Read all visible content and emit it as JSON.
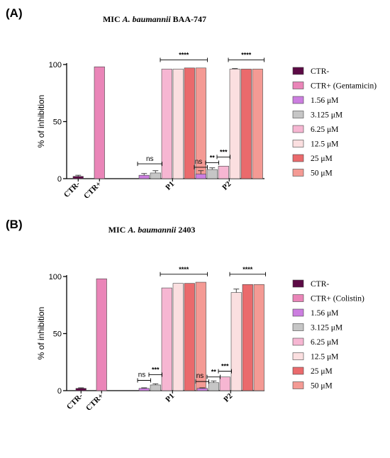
{
  "chart_data": [
    {
      "type": "bar",
      "panel_label": "(A)",
      "title_prefix": "MIC",
      "title_organism": "A. baumannii",
      "title_strain": "BAA-747",
      "ylabel": "% of inhibition",
      "ylim": [
        0,
        100
      ],
      "yticks": [
        "0",
        "50",
        "100"
      ],
      "grid": false,
      "legend_position": "right",
      "groups": [
        {
          "label": "CTR-",
          "bars": [
            {
              "series": "CTR-",
              "value": 2,
              "err": 1
            }
          ]
        },
        {
          "label": "CTR+",
          "bars": [
            {
              "series": "CTR+ (Gentamicin)",
              "value": 98,
              "err": 0
            }
          ]
        },
        {
          "label": "P1",
          "bars": [
            {
              "series": "1.56 μM",
              "value": 3,
              "err": 1.5
            },
            {
              "series": "3.125 μM",
              "value": 5,
              "err": 2
            },
            {
              "series": "6.25 μM",
              "value": 96,
              "err": 0
            },
            {
              "series": "12.5 μM",
              "value": 96,
              "err": 0
            },
            {
              "series": "25 μM",
              "value": 97,
              "err": 0
            },
            {
              "series": "50 μM",
              "value": 97,
              "err": 0
            }
          ]
        },
        {
          "label": "P2",
          "bars": [
            {
              "series": "1.56 μM",
              "value": 4,
              "err": 3
            },
            {
              "series": "3.125 μM",
              "value": 8,
              "err": 1.5
            },
            {
              "series": "6.25 μM",
              "value": 11,
              "err": 0
            },
            {
              "series": "12.5 μM",
              "value": 96,
              "err": 0.5
            },
            {
              "series": "25 μM",
              "value": 96,
              "err": 0
            },
            {
              "series": "50 μM",
              "value": 96,
              "err": 0
            }
          ]
        }
      ],
      "annotations": [
        {
          "group": "P1",
          "from": 0,
          "to": 1,
          "text": "ns",
          "y": 13
        },
        {
          "group": "P1",
          "from": 2,
          "to": 5,
          "text": "****",
          "y": 104
        },
        {
          "group": "P2",
          "from": 0,
          "to": 0,
          "text": "ns",
          "y": 10
        },
        {
          "group": "P2",
          "from": 1,
          "to": 1,
          "text": "**",
          "y": 14
        },
        {
          "group": "P2",
          "from": 2,
          "to": 2,
          "text": "***",
          "y": 19
        },
        {
          "group": "P2",
          "from": 3,
          "to": 5,
          "text": "****",
          "y": 104
        }
      ],
      "legend": [
        {
          "label": "CTR-",
          "color": "#5c0a45"
        },
        {
          "label": "CTR+ (Gentamicin)",
          "color": "#ea85b8"
        },
        {
          "label": "1.56 μM",
          "color": "#cc7ee0"
        },
        {
          "label": "3.125 μM",
          "color": "#c6c6c6"
        },
        {
          "label": "6.25 μM",
          "color": "#f6b6d2"
        },
        {
          "label": "12.5 μM",
          "color": "#fbdfe0"
        },
        {
          "label": "25 μM",
          "color": "#ea6a6c"
        },
        {
          "label": "50 μM",
          "color": "#f49a94"
        }
      ]
    },
    {
      "type": "bar",
      "panel_label": "(B)",
      "title_prefix": "MIC",
      "title_organism": "A. baumannii",
      "title_strain": "2403",
      "ylabel": "% of inhibition",
      "ylim": [
        0,
        100
      ],
      "yticks": [
        "0",
        "50",
        "100"
      ],
      "grid": false,
      "legend_position": "right",
      "groups": [
        {
          "label": "CTR-",
          "bars": [
            {
              "series": "CTR-",
              "value": 2,
              "err": 0.5
            }
          ]
        },
        {
          "label": "CTR+",
          "bars": [
            {
              "series": "CTR+ (Colistin)",
              "value": 98,
              "err": 0
            }
          ]
        },
        {
          "label": "P1",
          "bars": [
            {
              "series": "1.56 μM",
              "value": 2,
              "err": 0.5
            },
            {
              "series": "3.125 μM",
              "value": 5,
              "err": 1
            },
            {
              "series": "6.25 μM",
              "value": 90,
              "err": 0
            },
            {
              "series": "12.5 μM",
              "value": 94,
              "err": 0
            },
            {
              "series": "25 μM",
              "value": 94,
              "err": 0
            },
            {
              "series": "50 μM",
              "value": 95,
              "err": 0
            }
          ]
        },
        {
          "label": "P2",
          "bars": [
            {
              "series": "1.56 μM",
              "value": 2,
              "err": 0.5
            },
            {
              "series": "3.125 μM",
              "value": 7,
              "err": 1.5
            },
            {
              "series": "6.25 μM",
              "value": 12,
              "err": 0
            },
            {
              "series": "12.5 μM",
              "value": 86,
              "err": 3
            },
            {
              "series": "25 μM",
              "value": 93,
              "err": 0
            },
            {
              "series": "50 μM",
              "value": 93,
              "err": 0
            }
          ]
        }
      ],
      "annotations": [
        {
          "group": "P1",
          "from": 0,
          "to": 0,
          "text": "ns",
          "y": 9
        },
        {
          "group": "P1",
          "from": 1,
          "to": 1,
          "text": "***",
          "y": 14
        },
        {
          "group": "P1",
          "from": 2,
          "to": 5,
          "text": "****",
          "y": 102
        },
        {
          "group": "P2",
          "from": 0,
          "to": 0,
          "text": "ns",
          "y": 8
        },
        {
          "group": "P2",
          "from": 1,
          "to": 1,
          "text": "**",
          "y": 12
        },
        {
          "group": "P2",
          "from": 2,
          "to": 2,
          "text": "***",
          "y": 17
        },
        {
          "group": "P2",
          "from": 3,
          "to": 5,
          "text": "****",
          "y": 102
        }
      ],
      "legend": [
        {
          "label": "CTR-",
          "color": "#5c0a45"
        },
        {
          "label": "CTR+ (Colistin)",
          "color": "#ea85b8"
        },
        {
          "label": "1.56 μM",
          "color": "#cc7ee0"
        },
        {
          "label": "3.125 μM",
          "color": "#c6c6c6"
        },
        {
          "label": "6.25 μM",
          "color": "#f6b6d2"
        },
        {
          "label": "12.5 μM",
          "color": "#fbdfe0"
        },
        {
          "label": "25 μM",
          "color": "#ea6a6c"
        },
        {
          "label": "50 μM",
          "color": "#f49a94"
        }
      ]
    }
  ]
}
